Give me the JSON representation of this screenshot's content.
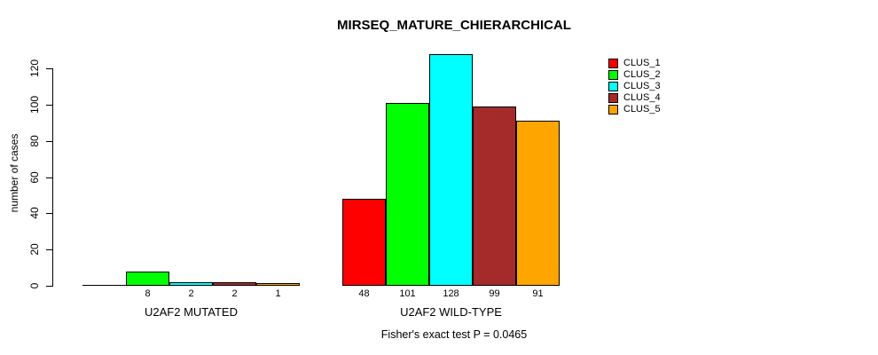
{
  "chart_data": {
    "type": "bar",
    "title": "MIRSEQ_MATURE_CHIERARCHICAL",
    "ylabel": "number of cases",
    "xlabel": "",
    "ylim": [
      0,
      130
    ],
    "yticks": [
      0,
      20,
      40,
      60,
      80,
      100,
      120
    ],
    "grid": false,
    "legend_position": "top-right",
    "legend": [
      {
        "label": "CLUS_1",
        "color": "#FF0000"
      },
      {
        "label": "CLUS_2",
        "color": "#00FF00"
      },
      {
        "label": "CLUS_3",
        "color": "#00FFFF"
      },
      {
        "label": "CLUS_4",
        "color": "#A52A2A"
      },
      {
        "label": "CLUS_5",
        "color": "#FFA500"
      }
    ],
    "groups": [
      {
        "label": "U2AF2 MUTATED",
        "series": [
          "CLUS_1",
          "CLUS_2",
          "CLUS_3",
          "CLUS_4",
          "CLUS_5"
        ],
        "values": [
          0,
          8,
          2,
          2,
          1
        ],
        "bar_labels": [
          "",
          "8",
          "2",
          "2",
          "1"
        ]
      },
      {
        "label": "U2AF2 WILD-TYPE",
        "series": [
          "CLUS_1",
          "CLUS_2",
          "CLUS_3",
          "CLUS_4",
          "CLUS_5"
        ],
        "values": [
          48,
          101,
          128,
          99,
          91
        ],
        "bar_labels": [
          "48",
          "101",
          "128",
          "99",
          "91"
        ]
      }
    ],
    "annotation": "Fisher's exact test P = 0.0465"
  }
}
